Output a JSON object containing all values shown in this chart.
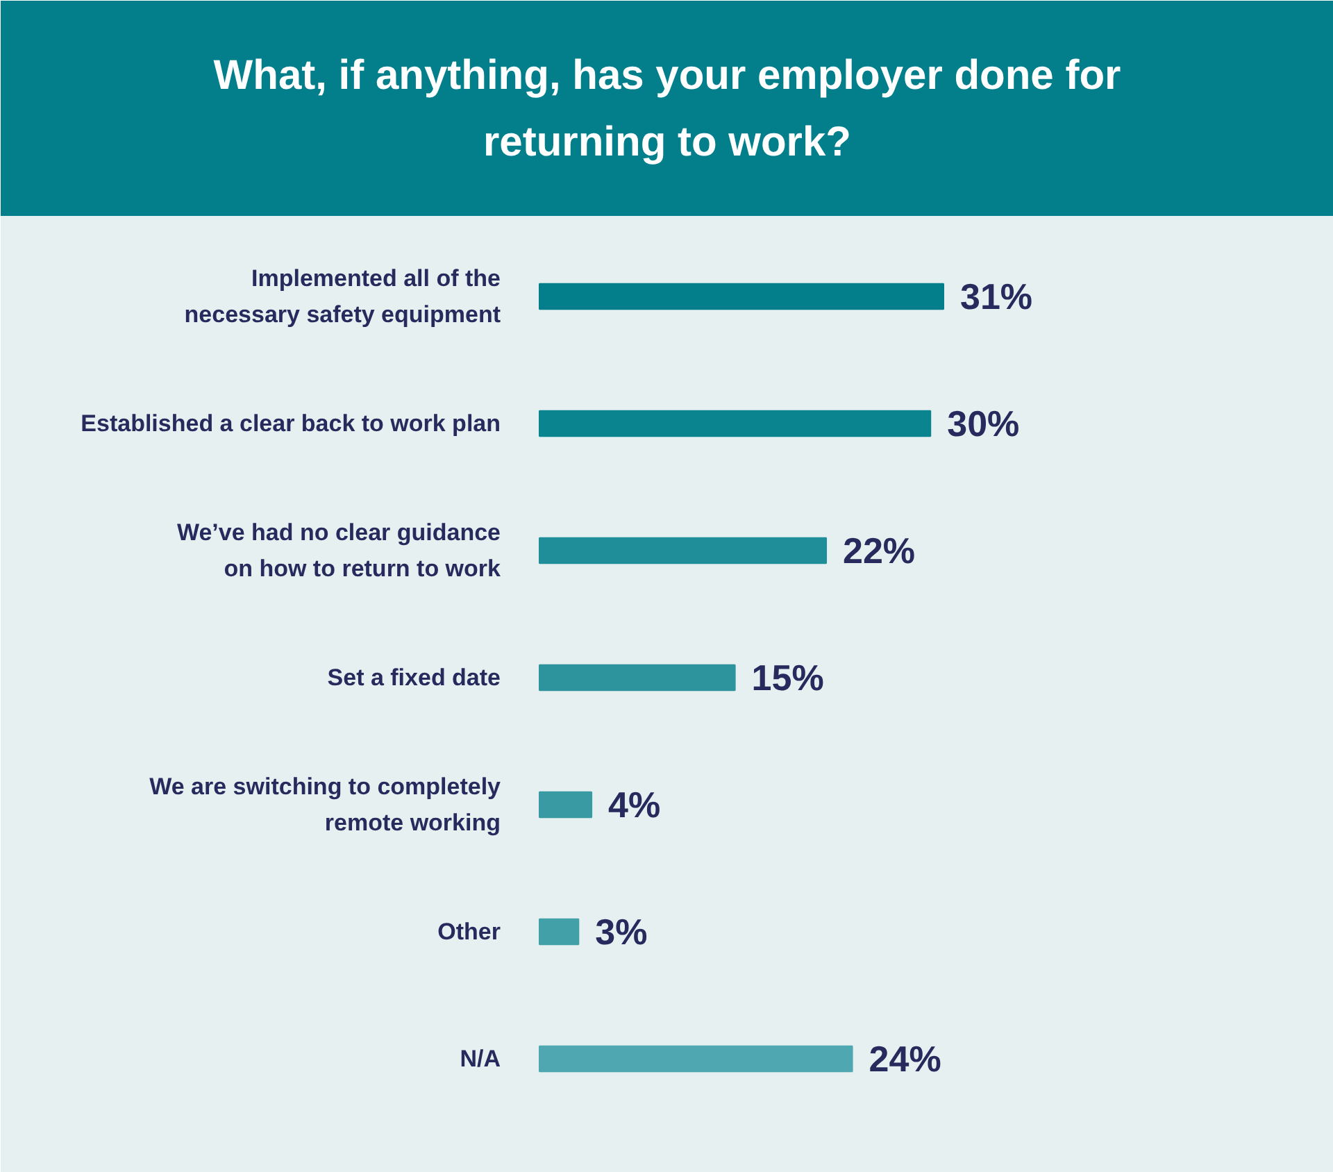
{
  "chart_data": {
    "type": "bar",
    "orientation": "horizontal",
    "title": "What, if anything, has your employer done for\nreturning to work?",
    "categories": [
      "Implemented all of the\nnecessary safety equipment",
      "Established a clear back to work plan",
      "We’ve had no clear guidance\non how to return to work",
      "Set a fixed date",
      "We are switching to completely\nremote working",
      "Other",
      "N/A"
    ],
    "values": [
      31,
      30,
      22,
      15,
      4,
      3,
      24
    ],
    "colors": [
      "#037f8c",
      "#0a848f",
      "#1f8e99",
      "#2d949e",
      "#3a9aa3",
      "#42a0a8",
      "#4fa8b1"
    ],
    "value_labels": [
      "31%",
      "30%",
      "22%",
      "15%",
      "4%",
      "3%",
      "24%"
    ]
  }
}
